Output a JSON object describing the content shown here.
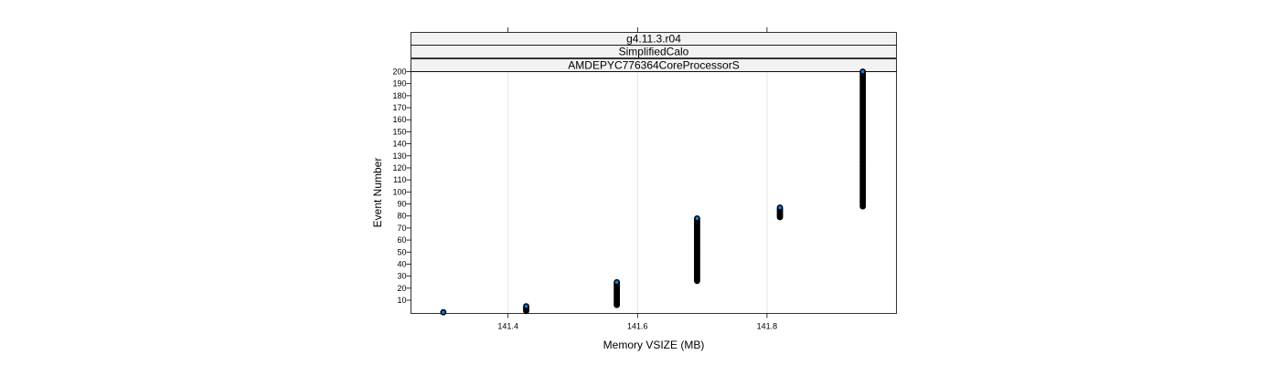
{
  "chart_data": {
    "type": "scatter",
    "strips": [
      "g4.11.3.r04",
      "SimplifiedCalo",
      "AMDEPYC776364CoreProcessorS"
    ],
    "xlabel": "Memory VSIZE (MB)",
    "ylabel": "Event Number",
    "xlim": [
      141.25,
      142.0
    ],
    "ylim": [
      -1,
      200
    ],
    "xticks": [
      141.4,
      141.6,
      141.8
    ],
    "xtick_labels": [
      "141.4",
      "141.6",
      "141.8"
    ],
    "yticks": [
      10,
      20,
      30,
      40,
      50,
      60,
      70,
      80,
      90,
      100,
      110,
      120,
      130,
      140,
      150,
      160,
      170,
      180,
      190,
      200
    ],
    "grid": true,
    "point_color": "#0080ff",
    "point_edge_color": "#000000",
    "series": [
      {
        "x": 141.3,
        "y_from": 0,
        "y_to": 0
      },
      {
        "x": 141.428,
        "y_from": 1,
        "y_to": 5
      },
      {
        "x": 141.568,
        "y_from": 6,
        "y_to": 25
      },
      {
        "x": 141.692,
        "y_from": 26,
        "y_to": 78
      },
      {
        "x": 141.82,
        "y_from": 79,
        "y_to": 87
      },
      {
        "x": 141.948,
        "y_from": 88,
        "y_to": 200
      }
    ]
  }
}
